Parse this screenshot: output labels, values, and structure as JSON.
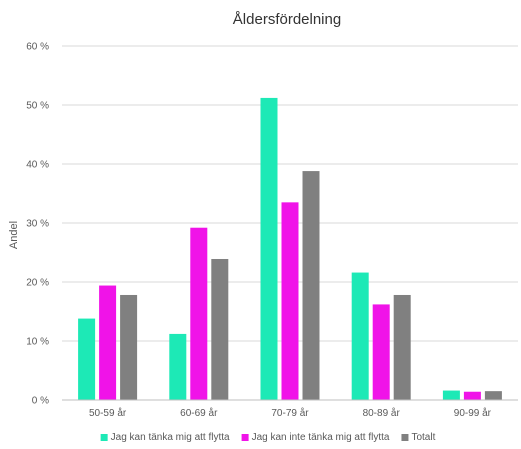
{
  "chart_data": {
    "type": "bar",
    "title": "Åldersfördelning",
    "xlabel": "",
    "ylabel": "Andel",
    "ylim": [
      0,
      60
    ],
    "yticks": [
      0,
      10,
      20,
      30,
      40,
      50,
      60
    ],
    "ytick_labels": [
      "0 %",
      "10 %",
      "20 %",
      "30 %",
      "40 %",
      "50 %",
      "60 %"
    ],
    "categories": [
      "50-59 år",
      "60-69 år",
      "70-79 år",
      "80-89 år",
      "90-99 år"
    ],
    "series": [
      {
        "name": "Jag kan tänka mig att flytta",
        "color": "#1DE9B6",
        "values": [
          13.8,
          11.2,
          51.2,
          21.6,
          1.6
        ]
      },
      {
        "name": "Jag kan inte tänka mig att flytta",
        "color": "#F013E8",
        "values": [
          19.4,
          29.2,
          33.5,
          16.2,
          1.4
        ]
      },
      {
        "name": "Totalt",
        "color": "#808080",
        "values": [
          17.8,
          23.9,
          38.8,
          17.8,
          1.5
        ]
      }
    ],
    "grid": true,
    "legend_position": "bottom"
  }
}
